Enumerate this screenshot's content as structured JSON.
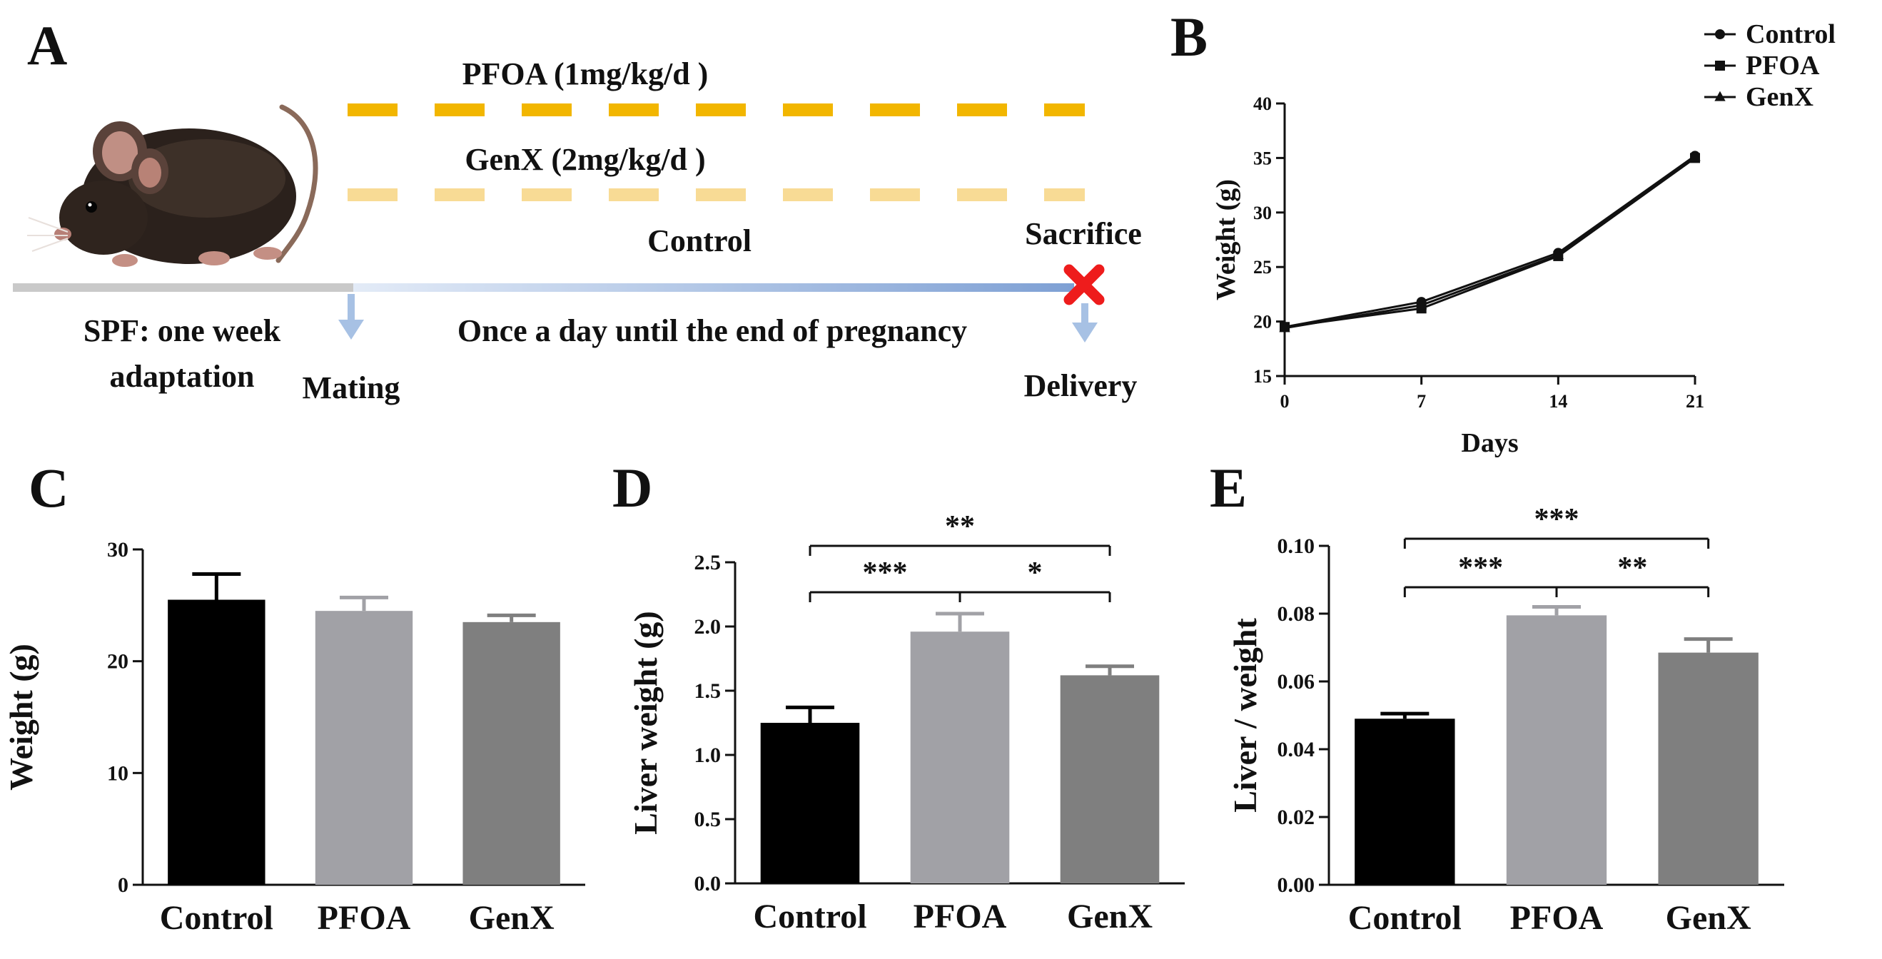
{
  "colors": {
    "control": "#000000",
    "pfoa": "#a1a1a6",
    "genx": "#7f7f7f",
    "pfoa_dash": "#f2b600",
    "genx_dash": "#f8db95",
    "timeline_gray": "#c9c9c9",
    "timeline_blue": "#7ea0d4",
    "arrow_blue": "#a7c1e4",
    "sacrifice_x": "#ee1c1c"
  },
  "panel_a": {
    "label": "A",
    "pfoa_label": "PFOA  (1mg/kg/d )",
    "genx_label": "GenX (2mg/kg/d )",
    "control_label": "Control",
    "sacrifice_label": "Sacrifice",
    "spf_line1": "SPF: one week",
    "spf_line2": "adaptation",
    "mating_label": "Mating",
    "once_label": "Once a day until the end of pregnancy",
    "delivery_label": "Delivery",
    "mouse_icon": "mouse-icon"
  },
  "chart_data": [
    {
      "panel": "B",
      "type": "line",
      "xlabel": "Days",
      "ylabel": "Weight (g)",
      "x": [
        0,
        7,
        14,
        21
      ],
      "xticks": [
        "0",
        "7",
        "14",
        "21"
      ],
      "ylim": [
        15,
        40
      ],
      "yticks": [
        "15",
        "20",
        "25",
        "30",
        "35",
        "40"
      ],
      "series": [
        {
          "name": "Control",
          "marker": "circle",
          "values": [
            19.5,
            21.8,
            26.3,
            35.2
          ]
        },
        {
          "name": "PFOA",
          "marker": "square",
          "values": [
            19.5,
            21.2,
            26.0,
            35.0
          ]
        },
        {
          "name": "GenX",
          "marker": "triangle",
          "values": [
            19.4,
            21.5,
            26.1,
            35.1
          ]
        }
      ],
      "legend": "top-right"
    },
    {
      "panel": "C",
      "type": "bar",
      "ylabel": "Weight (g)",
      "categories": [
        "Control",
        "PFOA",
        "GenX"
      ],
      "values": [
        25.5,
        24.5,
        23.5
      ],
      "errors": [
        2.3,
        1.2,
        0.6
      ],
      "ylim": [
        0,
        30
      ],
      "yticks": [
        "0",
        "10",
        "20",
        "30"
      ],
      "significance": []
    },
    {
      "panel": "D",
      "type": "bar",
      "ylabel": "Liver weight (g)",
      "categories": [
        "Control",
        "PFOA",
        "GenX"
      ],
      "values": [
        1.25,
        1.96,
        1.62
      ],
      "errors": [
        0.12,
        0.14,
        0.07
      ],
      "ylim": [
        0,
        2.5
      ],
      "yticks": [
        "0.0",
        "0.5",
        "1.0",
        "1.5",
        "2.0",
        "2.5"
      ],
      "significance": [
        {
          "from": 0,
          "to": 2,
          "label": "**"
        },
        {
          "from": 0,
          "to": 1,
          "label": "***"
        },
        {
          "from": 1,
          "to": 2,
          "label": "*"
        }
      ]
    },
    {
      "panel": "E",
      "type": "bar",
      "ylabel": "Liver / weight",
      "categories": [
        "Control",
        "PFOA",
        "GenX"
      ],
      "values": [
        0.049,
        0.0795,
        0.0685
      ],
      "errors": [
        0.0015,
        0.0025,
        0.004
      ],
      "ylim": [
        0,
        0.1
      ],
      "yticks": [
        "0.00",
        "0.02",
        "0.04",
        "0.06",
        "0.08",
        "0.10"
      ],
      "significance": [
        {
          "from": 0,
          "to": 2,
          "label": "***"
        },
        {
          "from": 0,
          "to": 1,
          "label": "***"
        },
        {
          "from": 1,
          "to": 2,
          "label": "**"
        }
      ]
    }
  ]
}
